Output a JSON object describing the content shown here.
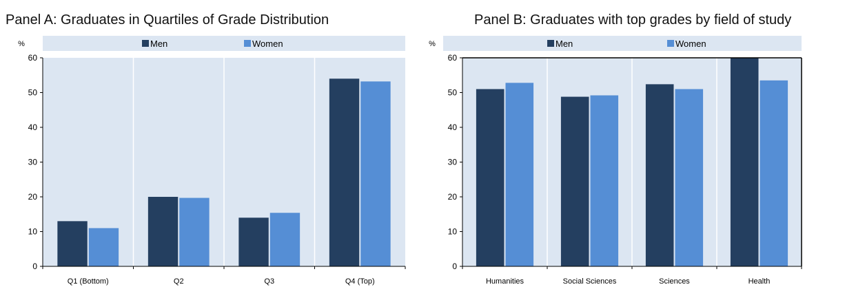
{
  "colors": {
    "men": "#243f60",
    "women": "#558ed5",
    "legend_bg": "#dce6f2",
    "grid": "#ffffff",
    "plot_bg": "#dce6f2"
  },
  "chart_data": [
    {
      "type": "bar",
      "title": "Panel A: Graduates in Quartiles of Grade Distribution",
      "ylabel": "%",
      "ylim": [
        0,
        60
      ],
      "yticks": [
        0,
        10,
        20,
        30,
        40,
        50,
        60
      ],
      "categories": [
        "Q1 (Bottom)",
        "Q2",
        "Q3",
        "Q4 (Top)"
      ],
      "legend_position": "top",
      "grid": true,
      "series": [
        {
          "name": "Men",
          "values": [
            13,
            20,
            14,
            54
          ]
        },
        {
          "name": "Women",
          "values": [
            11,
            19.7,
            15.4,
            53.2
          ]
        }
      ]
    },
    {
      "type": "bar",
      "title": "Panel B: Graduates with top grades by field of study",
      "ylabel": "%",
      "ylim": [
        0,
        60
      ],
      "yticks": [
        0,
        10,
        20,
        30,
        40,
        50,
        60
      ],
      "categories": [
        "Humanities",
        "Social Sciences",
        "Sciences",
        "Health"
      ],
      "legend_position": "top",
      "grid": true,
      "series": [
        {
          "name": "Men",
          "values": [
            51,
            48.8,
            52.4,
            60
          ]
        },
        {
          "name": "Women",
          "values": [
            52.8,
            49.2,
            51,
            53.5
          ]
        }
      ]
    }
  ]
}
